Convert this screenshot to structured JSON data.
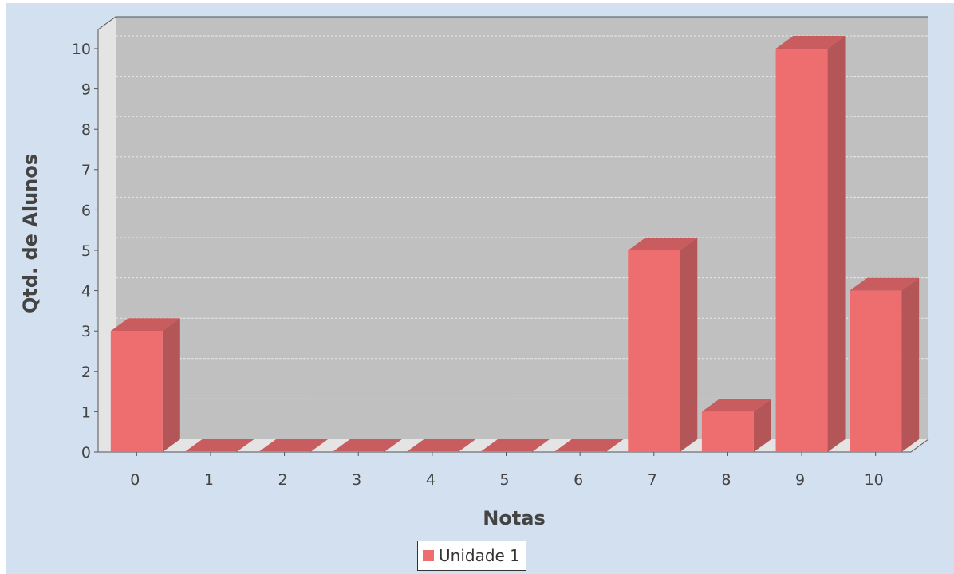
{
  "chart_data": {
    "type": "bar",
    "title": "",
    "xlabel": "Notas",
    "ylabel": "Qtd. de Alunos",
    "categories": [
      "0",
      "1",
      "2",
      "3",
      "4",
      "5",
      "6",
      "7",
      "8",
      "9",
      "10"
    ],
    "series": [
      {
        "name": "Unidade 1",
        "values": [
          3,
          0,
          0,
          0,
          0,
          0,
          0,
          5,
          1,
          10,
          4
        ]
      }
    ],
    "ylim": [
      0,
      10
    ],
    "yticks": [
      "0",
      "1",
      "2",
      "3",
      "4",
      "5",
      "6",
      "7",
      "8",
      "9",
      "10"
    ],
    "grid": true,
    "legend_position": "bottom-center",
    "three_d": true,
    "colors": {
      "bar_front": "#ee6e70",
      "bar_side": "#b45557",
      "bar_top": "#c85c5e",
      "plot_background": "#c0c0c0",
      "plot_wall": "#e4e4e4",
      "chart_background": "#d3e0ef"
    }
  }
}
